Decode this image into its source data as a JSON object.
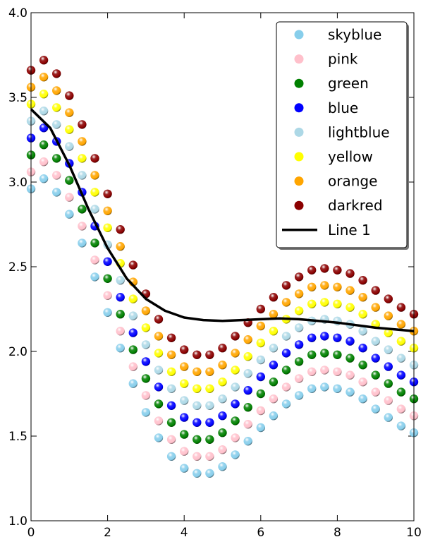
{
  "chart_data": {
    "type": "scatter",
    "title": "",
    "xlabel": "",
    "ylabel": "",
    "xlim": [
      0,
      10
    ],
    "ylim": [
      1.0,
      4.0
    ],
    "grid": false,
    "legend_position": "top-right",
    "x_ticks": [
      {
        "value": 0,
        "label": "0"
      },
      {
        "value": 2,
        "label": "2"
      },
      {
        "value": 4,
        "label": "4"
      },
      {
        "value": 6,
        "label": "6"
      },
      {
        "value": 8,
        "label": "8"
      },
      {
        "value": 10,
        "label": "10"
      }
    ],
    "y_ticks": [
      {
        "value": 1.0,
        "label": "1.0"
      },
      {
        "value": 1.5,
        "label": "1.5"
      },
      {
        "value": 2.0,
        "label": "2.0"
      },
      {
        "value": 2.5,
        "label": "2.5"
      },
      {
        "value": 3.0,
        "label": "3.0"
      },
      {
        "value": 3.5,
        "label": "3.5"
      },
      {
        "value": 4.0,
        "label": "4.0"
      }
    ],
    "x": [
      0,
      0.3333,
      0.6667,
      1.0,
      1.3333,
      1.6667,
      2.0,
      2.3333,
      2.6667,
      3.0,
      3.3333,
      3.6667,
      4.0,
      4.3333,
      4.6667,
      5.0,
      5.3333,
      5.6667,
      6.0,
      6.3333,
      6.6667,
      7.0,
      7.3333,
      7.6667,
      8.0,
      8.3333,
      8.6667,
      9.0,
      9.3333,
      9.6667,
      10.0
    ],
    "series": [
      {
        "name": "skyblue",
        "color": "#87ceeb",
        "marker": "circle",
        "values": [
          2.96,
          3.02,
          2.94,
          2.81,
          2.64,
          2.44,
          2.23,
          2.02,
          1.81,
          1.64,
          1.49,
          1.38,
          1.31,
          1.28,
          1.28,
          1.32,
          1.39,
          1.47,
          1.55,
          1.62,
          1.69,
          1.74,
          1.78,
          1.79,
          1.78,
          1.76,
          1.72,
          1.66,
          1.61,
          1.56,
          1.52
        ]
      },
      {
        "name": "pink",
        "color": "#ffc0cb",
        "marker": "circle",
        "values": [
          3.06,
          3.12,
          3.04,
          2.91,
          2.74,
          2.54,
          2.33,
          2.12,
          1.91,
          1.74,
          1.59,
          1.48,
          1.41,
          1.38,
          1.38,
          1.42,
          1.49,
          1.57,
          1.65,
          1.72,
          1.79,
          1.84,
          1.88,
          1.89,
          1.88,
          1.86,
          1.82,
          1.76,
          1.71,
          1.66,
          1.62
        ]
      },
      {
        "name": "green",
        "color": "#008000",
        "marker": "circle",
        "values": [
          3.16,
          3.22,
          3.14,
          3.01,
          2.84,
          2.64,
          2.43,
          2.22,
          2.01,
          1.84,
          1.69,
          1.58,
          1.51,
          1.48,
          1.48,
          1.52,
          1.59,
          1.67,
          1.75,
          1.82,
          1.89,
          1.94,
          1.98,
          1.99,
          1.98,
          1.96,
          1.92,
          1.86,
          1.81,
          1.76,
          1.72
        ]
      },
      {
        "name": "blue",
        "color": "#0000ff",
        "marker": "circle",
        "values": [
          3.26,
          3.32,
          3.24,
          3.11,
          2.94,
          2.74,
          2.53,
          2.32,
          2.11,
          1.94,
          1.79,
          1.68,
          1.61,
          1.58,
          1.58,
          1.62,
          1.69,
          1.77,
          1.85,
          1.92,
          1.99,
          2.04,
          2.08,
          2.09,
          2.08,
          2.06,
          2.02,
          1.96,
          1.91,
          1.86,
          1.82
        ]
      },
      {
        "name": "lightblue",
        "color": "#add8e6",
        "marker": "circle",
        "values": [
          3.36,
          3.42,
          3.34,
          3.21,
          3.04,
          2.84,
          2.63,
          2.42,
          2.21,
          2.04,
          1.89,
          1.78,
          1.71,
          1.68,
          1.68,
          1.72,
          1.79,
          1.87,
          1.95,
          2.02,
          2.09,
          2.14,
          2.18,
          2.19,
          2.18,
          2.16,
          2.12,
          2.06,
          2.01,
          1.96,
          1.92
        ]
      },
      {
        "name": "yellow",
        "color": "#ffff00",
        "marker": "circle",
        "values": [
          3.46,
          3.52,
          3.44,
          3.31,
          3.14,
          2.94,
          2.73,
          2.52,
          2.31,
          2.14,
          1.99,
          1.88,
          1.81,
          1.78,
          1.78,
          1.82,
          1.89,
          1.97,
          2.05,
          2.12,
          2.19,
          2.24,
          2.28,
          2.29,
          2.28,
          2.26,
          2.22,
          2.16,
          2.11,
          2.06,
          2.02
        ]
      },
      {
        "name": "orange",
        "color": "#ffa500",
        "marker": "circle",
        "values": [
          3.56,
          3.62,
          3.54,
          3.41,
          3.24,
          3.04,
          2.83,
          2.62,
          2.41,
          2.24,
          2.09,
          1.98,
          1.91,
          1.88,
          1.88,
          1.92,
          1.99,
          2.07,
          2.15,
          2.22,
          2.29,
          2.34,
          2.38,
          2.39,
          2.38,
          2.36,
          2.32,
          2.26,
          2.21,
          2.16,
          2.12
        ]
      },
      {
        "name": "darkred",
        "color": "#8b0000",
        "marker": "circle",
        "values": [
          3.66,
          3.72,
          3.64,
          3.51,
          3.34,
          3.14,
          2.93,
          2.72,
          2.51,
          2.34,
          2.19,
          2.08,
          2.01,
          1.98,
          1.98,
          2.02,
          2.09,
          2.17,
          2.25,
          2.32,
          2.39,
          2.44,
          2.48,
          2.49,
          2.48,
          2.46,
          2.42,
          2.36,
          2.31,
          2.26,
          2.22
        ]
      }
    ],
    "line": {
      "name": "Line 1",
      "color": "#000000",
      "x": [
        0,
        0.5,
        1.0,
        1.5,
        2.0,
        2.5,
        3.0,
        3.5,
        4.0,
        4.5,
        5.0,
        5.5,
        6.0,
        6.5,
        7.0,
        7.5,
        8.0,
        8.5,
        9.0,
        9.5,
        10.0
      ],
      "values": [
        3.43,
        3.32,
        3.1,
        2.84,
        2.61,
        2.43,
        2.31,
        2.24,
        2.2,
        2.185,
        2.18,
        2.185,
        2.19,
        2.195,
        2.19,
        2.18,
        2.17,
        2.155,
        2.14,
        2.13,
        2.12
      ]
    }
  }
}
